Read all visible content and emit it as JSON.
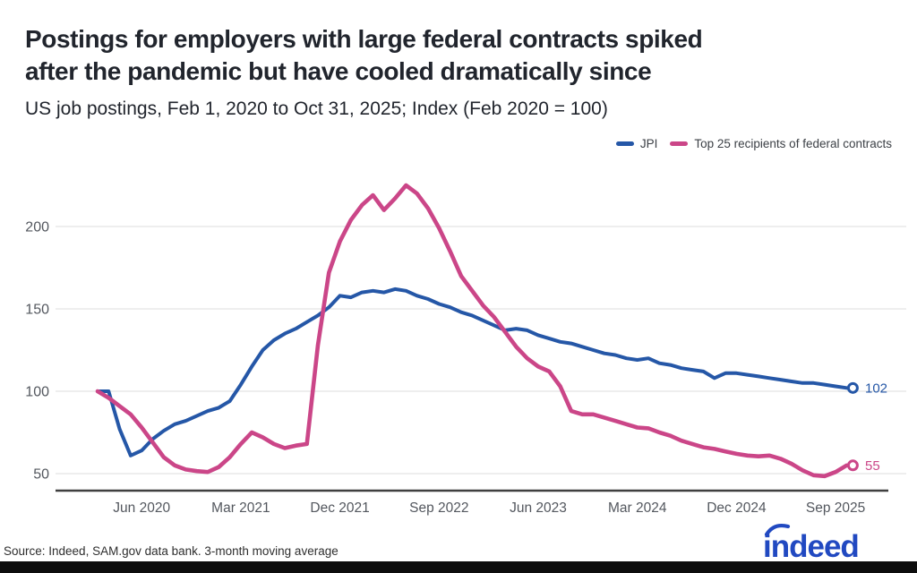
{
  "header": {
    "title_line1": "Postings for employers with large federal contracts spiked",
    "title_line2": "after the pandemic but have cooled dramatically since",
    "subtitle": "US job postings, Feb 1, 2020 to Oct 31, 2025; Index (Feb 2020 = 100)"
  },
  "legend": {
    "items": [
      {
        "label": "JPI",
        "color": "#2557a7"
      },
      {
        "label": "Top 25 recipients of federal contracts",
        "color": "#cb4688"
      }
    ]
  },
  "colors": {
    "jpi_blue": "#2557a7",
    "contracts_pink": "#cb4688",
    "logo_blue": "#2149c1",
    "axis_line": "#3f3f3f",
    "gridline": "#e4e4e4",
    "tick_text": "#53575e"
  },
  "chart_data": {
    "type": "line",
    "title": "Postings for employers with large federal contracts spiked after the pandemic but have cooled dramatically since",
    "subtitle": "US job postings, Feb 1, 2020 to Oct 31, 2025; Index (Feb 2020 = 100)",
    "x_unit": "month",
    "x_start": "Feb 2020",
    "x_end": "Oct 2025",
    "x_tick_labels": [
      "Jun 2020",
      "Mar 2021",
      "Dec 2021",
      "Sep 2022",
      "Jun 2023",
      "Mar 2024",
      "Dec 2024",
      "Sep 2025"
    ],
    "x_tick_month_index": [
      4,
      13,
      22,
      31,
      40,
      49,
      58,
      67
    ],
    "y_ticks": [
      50,
      100,
      150,
      200
    ],
    "ylim": [
      40,
      232
    ],
    "grid": "horizontal-only",
    "legend_position": "top-right",
    "series": [
      {
        "name": "JPI",
        "color": "#2557a7",
        "end_label": "102",
        "values": [
          100,
          100,
          77,
          61,
          64,
          71,
          76,
          80,
          82,
          85,
          88,
          90,
          94,
          104,
          115,
          125,
          131,
          135,
          138,
          142,
          146,
          151,
          158,
          157,
          160,
          161,
          160,
          162,
          161,
          158,
          156,
          153,
          151,
          148,
          146,
          143,
          140,
          137,
          138,
          137,
          134,
          132,
          130,
          129,
          127,
          125,
          123,
          122,
          120,
          119,
          120,
          117,
          116,
          114,
          113,
          112,
          108,
          111,
          111,
          110,
          109,
          108,
          107,
          106,
          105,
          105,
          104,
          103,
          102
        ]
      },
      {
        "name": "Top 25 recipients of federal contracts",
        "color": "#cb4688",
        "end_label": "55",
        "values": [
          100,
          96,
          91,
          86,
          78,
          69,
          60,
          55,
          52.5,
          51.5,
          51,
          54,
          60,
          68,
          75,
          72,
          68,
          65.5,
          67,
          68,
          128,
          172,
          191,
          204,
          213,
          219,
          210,
          217,
          225,
          220,
          211,
          199,
          185,
          170,
          161,
          152,
          145,
          136,
          127,
          120,
          115,
          112,
          103,
          88,
          86,
          86,
          84,
          82,
          80,
          78,
          77.5,
          75,
          73,
          70,
          68,
          66,
          65,
          63.5,
          62,
          61,
          60.5,
          61,
          59,
          56,
          52,
          49,
          48.5,
          51,
          55
        ]
      }
    ]
  },
  "footer": {
    "source": "Source: Indeed, SAM.gov data bank. 3-month moving average",
    "logo_text": "indeed"
  }
}
